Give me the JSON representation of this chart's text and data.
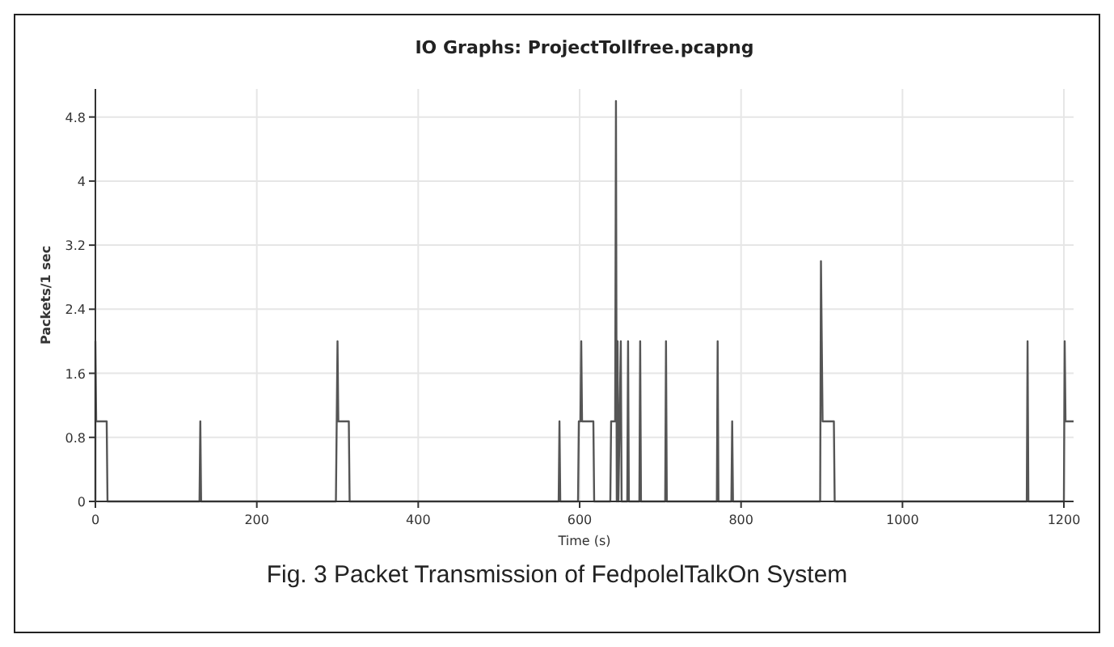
{
  "chart_data": {
    "type": "line",
    "title": "IO Graphs: ProjectTollfree.pcapng",
    "xlabel": "Time (s)",
    "ylabel": "Packets/1 sec",
    "annotations": [
      "Fig. 3 Packet Transmission of FedpolelTalkOn System"
    ],
    "xlim": [
      0,
      1212
    ],
    "ylim": [
      0,
      5.15
    ],
    "xticks": [
      0,
      200,
      400,
      600,
      800,
      1000,
      1200
    ],
    "yticks": [
      0,
      0.8,
      1.6,
      2.4,
      3.2,
      4,
      4.8
    ],
    "grid": true,
    "marker": "none",
    "line_style": "solid",
    "series": [
      {
        "color": "#555555",
        "x": [
          0,
          0,
          1,
          14,
          15,
          129,
          130,
          131,
          298,
          299,
          300,
          301,
          314,
          315,
          574,
          575,
          576,
          598,
          599,
          601,
          602,
          603,
          617,
          618,
          638,
          639,
          644,
          645,
          646,
          647,
          648,
          651,
          652,
          659,
          660,
          661,
          674,
          675,
          676,
          706,
          707,
          708,
          770,
          771,
          772,
          788,
          789,
          790,
          898,
          899,
          900,
          901,
          915,
          916,
          1154,
          1155,
          1156,
          1200,
          1201,
          1202,
          1212
        ],
        "values": [
          0,
          2,
          1,
          1,
          0,
          0,
          1,
          0,
          0,
          1,
          2,
          1,
          1,
          0,
          0,
          1,
          0,
          0,
          1,
          1,
          2,
          1,
          1,
          0,
          0,
          1,
          1,
          5,
          0,
          2,
          0,
          2,
          0,
          0,
          2,
          0,
          0,
          2,
          0,
          0,
          2,
          0,
          0,
          2,
          0,
          0,
          1,
          0,
          0,
          3,
          2,
          1,
          1,
          0,
          0,
          2,
          0,
          0,
          2,
          1,
          1
        ]
      }
    ]
  }
}
